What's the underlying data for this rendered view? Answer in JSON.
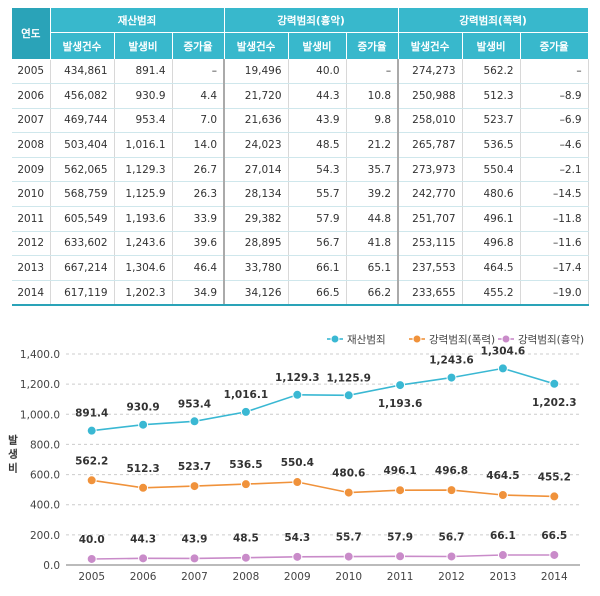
{
  "table": {
    "year_header": "연도",
    "groups": [
      "재산범죄",
      "강력범죄(흉악)",
      "강력범죄(폭력)"
    ],
    "subheaders": [
      "발생건수",
      "발생비",
      "증가율"
    ],
    "rows": [
      {
        "year": "2005",
        "cells": [
          "434,861",
          "891.4",
          "–",
          "19,496",
          "40.0",
          "–",
          "274,273",
          "562.2",
          "–"
        ]
      },
      {
        "year": "2006",
        "cells": [
          "456,082",
          "930.9",
          "4.4",
          "21,720",
          "44.3",
          "10.8",
          "250,988",
          "512.3",
          "–8.9"
        ]
      },
      {
        "year": "2007",
        "cells": [
          "469,744",
          "953.4",
          "7.0",
          "21,636",
          "43.9",
          "9.8",
          "258,010",
          "523.7",
          "–6.9"
        ]
      },
      {
        "year": "2008",
        "cells": [
          "503,404",
          "1,016.1",
          "14.0",
          "24,023",
          "48.5",
          "21.2",
          "265,787",
          "536.5",
          "–4.6"
        ]
      },
      {
        "year": "2009",
        "cells": [
          "562,065",
          "1,129.3",
          "26.7",
          "27,014",
          "54.3",
          "35.7",
          "273,973",
          "550.4",
          "–2.1"
        ]
      },
      {
        "year": "2010",
        "cells": [
          "568,759",
          "1,125.9",
          "26.3",
          "28,134",
          "55.7",
          "39.2",
          "242,770",
          "480.6",
          "–14.5"
        ]
      },
      {
        "year": "2011",
        "cells": [
          "605,549",
          "1,193.6",
          "33.9",
          "29,382",
          "57.9",
          "44.8",
          "251,707",
          "496.1",
          "–11.8"
        ]
      },
      {
        "year": "2012",
        "cells": [
          "633,602",
          "1,243.6",
          "39.6",
          "28,895",
          "56.7",
          "41.8",
          "253,115",
          "496.8",
          "–11.6"
        ]
      },
      {
        "year": "2013",
        "cells": [
          "667,214",
          "1,304.6",
          "46.4",
          "33,780",
          "66.1",
          "65.1",
          "237,553",
          "464.5",
          "–17.4"
        ]
      },
      {
        "year": "2014",
        "cells": [
          "617,119",
          "1,202.3",
          "34.9",
          "34,126",
          "66.5",
          "66.2",
          "233,655",
          "455.2",
          "–19.0"
        ]
      }
    ]
  },
  "chart_data": {
    "type": "line",
    "x": [
      "2005",
      "2006",
      "2007",
      "2008",
      "2009",
      "2010",
      "2011",
      "2012",
      "2013",
      "2014"
    ],
    "ylabel": "발생비",
    "ylim": [
      0,
      1400
    ],
    "yticks": [
      "0.0",
      "200.0",
      "400.0",
      "600.0",
      "800.0",
      "1,000.0",
      "1,200.0",
      "1,400.0"
    ],
    "legend_position": "top-right",
    "series": [
      {
        "name": "재산범죄",
        "color": "#3ab8d3",
        "values": [
          891.4,
          930.9,
          953.4,
          1016.1,
          1129.3,
          1125.9,
          1193.6,
          1243.6,
          1304.6,
          1202.3
        ],
        "labels": [
          "891.4",
          "930.9",
          "953.4",
          "1,016.1",
          "1,129.3",
          "1,125.9",
          "1,193.6",
          "1,243.6",
          "1,304.6",
          "1,202.3"
        ]
      },
      {
        "name": "강력범죄(폭력)",
        "color": "#f0923b",
        "values": [
          562.2,
          512.3,
          523.7,
          536.5,
          550.4,
          480.6,
          496.1,
          496.8,
          464.5,
          455.2
        ],
        "labels": [
          "562.2",
          "512.3",
          "523.7",
          "536.5",
          "550.4",
          "480.6",
          "496.1",
          "496.8",
          "464.5",
          "455.2"
        ]
      },
      {
        "name": "강력범죄(흉악)",
        "color": "#c98bc9",
        "values": [
          40.0,
          44.3,
          43.9,
          48.5,
          54.3,
          55.7,
          57.9,
          56.7,
          66.1,
          66.5
        ],
        "labels": [
          "40.0",
          "44.3",
          "43.9",
          "48.5",
          "54.3",
          "55.7",
          "57.9",
          "56.7",
          "66.1",
          "66.5"
        ]
      }
    ]
  }
}
